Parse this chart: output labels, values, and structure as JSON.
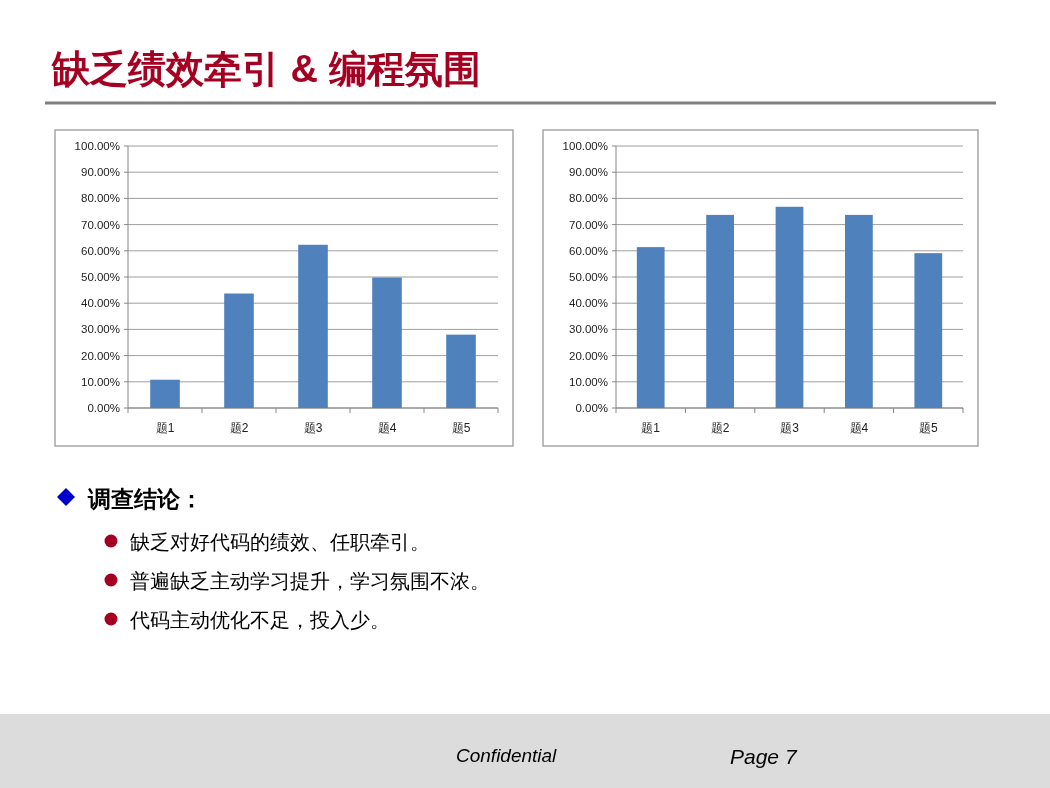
{
  "chart_data": [
    {
      "type": "bar",
      "title": "缺乏绩效牵引 & 编程氛围",
      "categories": [
        "题1",
        "题2",
        "题3",
        "题4",
        "题5"
      ],
      "values": [
        10.8,
        43.7,
        62.3,
        49.8,
        28.0
      ],
      "color": "#4f81bd",
      "ylim": [
        0,
        100
      ],
      "yticks": [
        {
          "value": 0,
          "label": "0.00%"
        },
        {
          "value": 10,
          "label": "10.00%"
        },
        {
          "value": 20,
          "label": "20.00%"
        },
        {
          "value": 30,
          "label": "30.00%"
        },
        {
          "value": 40,
          "label": "40.00%"
        },
        {
          "value": 50,
          "label": "50.00%"
        },
        {
          "value": 60,
          "label": "60.00%"
        },
        {
          "value": 70,
          "label": "70.00%"
        },
        {
          "value": 80,
          "label": "80.00%"
        },
        {
          "value": 90,
          "label": "90.00%"
        },
        {
          "value": 100,
          "label": "100.00%"
        }
      ],
      "grid": "y"
    },
    {
      "type": "bar",
      "categories": [
        "题1",
        "题2",
        "题3",
        "题4",
        "题5"
      ],
      "values": [
        61.4,
        73.7,
        76.8,
        73.7,
        59.1
      ],
      "color": "#4f81bd",
      "ylim": [
        0,
        100
      ],
      "yticks": [
        {
          "value": 0,
          "label": "0.00%"
        },
        {
          "value": 10,
          "label": "10.00%"
        },
        {
          "value": 20,
          "label": "20.00%"
        },
        {
          "value": 30,
          "label": "30.00%"
        },
        {
          "value": 40,
          "label": "40.00%"
        },
        {
          "value": 50,
          "label": "50.00%"
        },
        {
          "value": 60,
          "label": "60.00%"
        },
        {
          "value": 70,
          "label": "70.00%"
        },
        {
          "value": 80,
          "label": "80.00%"
        },
        {
          "value": 90,
          "label": "90.00%"
        },
        {
          "value": 100,
          "label": "100.00%"
        }
      ],
      "grid": "y"
    },
    {
      "type": "other",
      "title": "调查结论：",
      "annotations": [
        "缺乏对好代码的绩效、任职牵引。",
        "普遍缺乏主动学习提升，学习氛围不浓。",
        "代码主动优化不足，投入少。",
        "Confidential",
        "Page 7"
      ]
    }
  ]
}
